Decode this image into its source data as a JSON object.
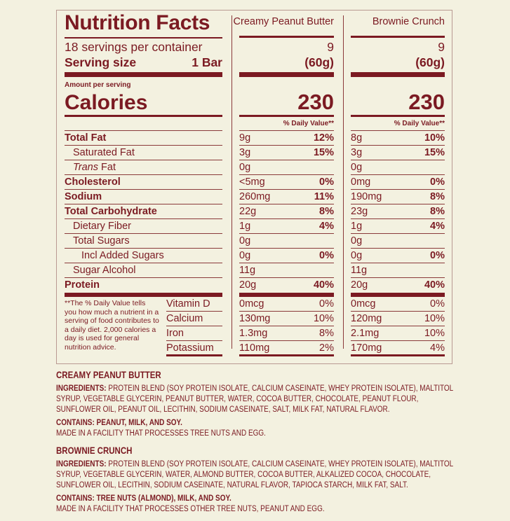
{
  "colors": {
    "accent": "#7b1a22",
    "background": "#f3f1e0"
  },
  "label": {
    "title": "Nutrition Facts",
    "servings": "18 servings per container",
    "serving_size_label": "Serving size",
    "serving_size_value": "1 Bar",
    "amount_per_serving": "Amount per serving",
    "calories_label": "Calories",
    "nutrients": [
      {
        "name": "Total Fat",
        "bold": true,
        "indent": 0
      },
      {
        "name": "Saturated Fat",
        "bold": false,
        "indent": 1
      },
      {
        "name": "Trans Fat",
        "bold": false,
        "indent": 1,
        "italic_prefix": "Trans"
      },
      {
        "name": "Cholesterol",
        "bold": true,
        "indent": 0
      },
      {
        "name": "Sodium",
        "bold": true,
        "indent": 0
      },
      {
        "name": "Total Carbohydrate",
        "bold": true,
        "indent": 0
      },
      {
        "name": "Dietary Fiber",
        "bold": false,
        "indent": 1
      },
      {
        "name": "Total Sugars",
        "bold": false,
        "indent": 1
      },
      {
        "name": "Incl Added Sugars",
        "bold": false,
        "indent": 2
      },
      {
        "name": "Sugar Alcohol",
        "bold": false,
        "indent": 1
      },
      {
        "name": "Protein",
        "bold": true,
        "indent": 0
      }
    ],
    "footnote": "**The % Daily Value tells you how much a nutrient in a serving of food contributes to a daily diet. 2,000 calories a day is used for general nutrition advice.",
    "vitamins": [
      "Vitamin D",
      "Calcium",
      "Iron",
      "Potassium"
    ]
  },
  "products": [
    {
      "name": "Creamy Peanut Butter",
      "servings": "9",
      "serving_size": "(60g)",
      "calories": "230",
      "dv_header": "% Daily Value**",
      "nutrients": [
        [
          "9g",
          "12%"
        ],
        [
          "3g",
          "15%"
        ],
        [
          "0g",
          ""
        ],
        [
          "<5mg",
          "0%"
        ],
        [
          "260mg",
          "11%"
        ],
        [
          "22g",
          "8%"
        ],
        [
          "1g",
          "4%"
        ],
        [
          "0g",
          ""
        ],
        [
          "0g",
          "0%"
        ],
        [
          "11g",
          ""
        ],
        [
          "20g",
          "40%"
        ]
      ],
      "vitamins": [
        [
          "0mcg",
          "0%"
        ],
        [
          "130mg",
          "10%"
        ],
        [
          "1.3mg",
          "8%"
        ],
        [
          "110mg",
          "2%"
        ]
      ]
    },
    {
      "name": "Brownie Crunch",
      "servings": "9",
      "serving_size": "(60g)",
      "calories": "230",
      "dv_header": "% Daily Value**",
      "nutrients": [
        [
          "8g",
          "10%"
        ],
        [
          "3g",
          "15%"
        ],
        [
          "0g",
          ""
        ],
        [
          "0mg",
          "0%"
        ],
        [
          "190mg",
          "8%"
        ],
        [
          "23g",
          "8%"
        ],
        [
          "1g",
          "4%"
        ],
        [
          "0g",
          ""
        ],
        [
          "0g",
          "0%"
        ],
        [
          "11g",
          ""
        ],
        [
          "20g",
          "40%"
        ]
      ],
      "vitamins": [
        [
          "0mcg",
          "0%"
        ],
        [
          "120mg",
          "10%"
        ],
        [
          "2.1mg",
          "10%"
        ],
        [
          "170mg",
          "4%"
        ]
      ]
    }
  ],
  "ingredients": [
    {
      "title": "CREAMY PEANUT BUTTER",
      "ingredients_label": "INGREDIENTS:",
      "ingredients": " PROTEIN BLEND (SOY PROTEIN ISOLATE,  CALCIUM CASEINATE, WHEY PROTEIN ISOLATE), MALTITOL SYRUP, VEGETABLE GLYCERIN, PEANUT BUTTER, WATER, COCOA BUTTER, CHOCOLATE, PEANUT FLOUR, SUNFLOWER OIL, PEANUT OIL, LECITHIN, SODIUM CASEINATE, SALT, MILK FAT, NATURAL FLAVOR.",
      "contains": "CONTAINS: PEANUT, MILK, AND SOY.",
      "facility": "MADE IN A FACILITY THAT PROCESSES TREE NUTS AND EGG."
    },
    {
      "title": "BROWNIE CRUNCH",
      "ingredients_label": "INGREDIENTS:",
      "ingredients": " PROTEIN BLEND (SOY PROTEIN ISOLATE, CALCIUM CASEINATE, WHEY PROTEIN ISOLATE), MALTITOL SYRUP, VEGETABLE GLYCERIN, WATER, ALMOND BUTTER, COCOA BUTTER, ALKALIZED COCOA, CHOCOLATE,  SUNFLOWER OIL, LECITHIN, SODIUM CASEINATE, NATURAL FLAVOR, TAPIOCA STARCH, MILK FAT, SALT.",
      "contains": "CONTAINS: TREE NUTS (ALMOND), MILK, AND SOY.",
      "facility": "MADE IN A FACILITY THAT PROCESSES OTHER TREE NUTS, PEANUT AND EGG."
    }
  ]
}
